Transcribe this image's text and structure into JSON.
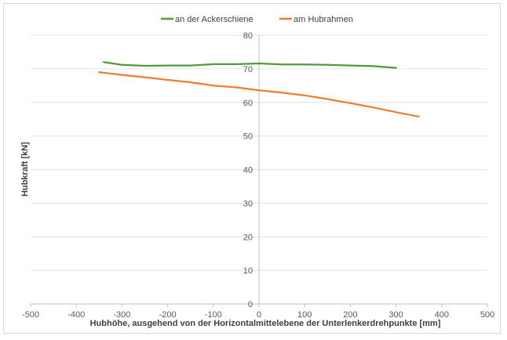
{
  "chart_data": {
    "type": "line",
    "title": "",
    "xlabel": "Hubhöhe, ausgehend von der Horizontalmittelebene der Unterlenkerdrehpunkte [mm]",
    "ylabel": "Hubkraft [kN]",
    "xlim": [
      -500,
      500
    ],
    "ylim": [
      0,
      80
    ],
    "xticks": [
      -500,
      -400,
      -300,
      -200,
      -100,
      0,
      100,
      200,
      300,
      400,
      500
    ],
    "yticks": [
      0,
      10,
      20,
      30,
      40,
      50,
      60,
      70,
      80
    ],
    "grid": "horizontal",
    "legend_position": "top",
    "series": [
      {
        "name": "an der Ackerschiene",
        "color": "#4e9a3c",
        "x": [
          -340,
          -300,
          -250,
          -200,
          -150,
          -100,
          -50,
          0,
          50,
          100,
          150,
          200,
          250,
          300
        ],
        "y": [
          72.0,
          71.2,
          70.9,
          71.0,
          71.0,
          71.4,
          71.4,
          71.6,
          71.3,
          71.3,
          71.2,
          71.0,
          70.8,
          70.3
        ]
      },
      {
        "name": "am Hubrahmen",
        "color": "#ed7d31",
        "x": [
          -350,
          -300,
          -250,
          -200,
          -150,
          -100,
          -50,
          0,
          50,
          100,
          150,
          200,
          250,
          300,
          350
        ],
        "y": [
          69.0,
          68.2,
          67.5,
          66.7,
          66.0,
          65.0,
          64.5,
          63.6,
          62.9,
          62.1,
          61.0,
          59.8,
          58.5,
          57.1,
          55.8
        ]
      }
    ]
  }
}
